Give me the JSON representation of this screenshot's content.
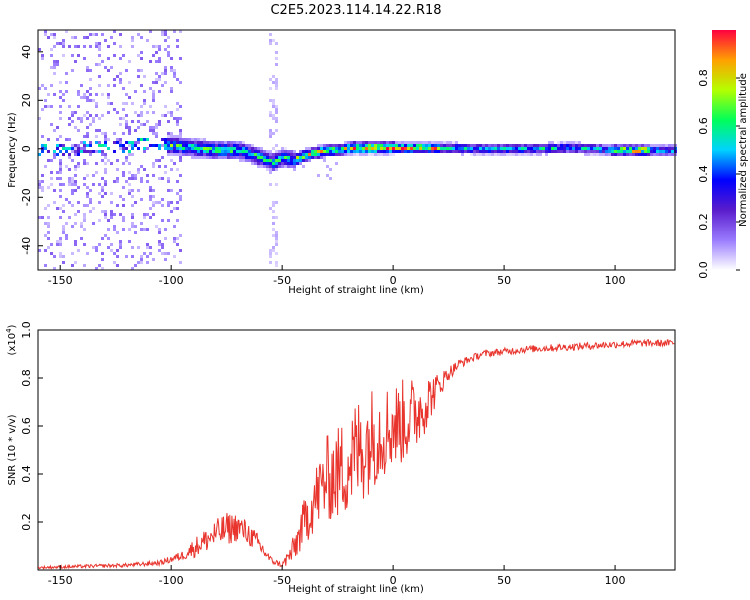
{
  "figure": {
    "title": "C2E5.2023.114.14.22.R18"
  },
  "chart_data": [
    {
      "type": "heatmap",
      "title": "C2E5.2023.114.14.22.R18",
      "xlabel": "Height of straight line (km)",
      "ylabel": "Frequency (Hz)",
      "xlim": [
        -160,
        127
      ],
      "ylim": [
        -50,
        49
      ],
      "xticks": [
        "-150",
        "-100",
        "-50",
        "0",
        "50",
        "100"
      ],
      "yticks": [
        "40",
        "20",
        "0",
        "-20",
        "-40"
      ],
      "xtick_values": [
        -150,
        -100,
        -50,
        0,
        50,
        100
      ],
      "ytick_values": [
        40,
        20,
        0,
        -20,
        -40
      ],
      "colorbar": {
        "label": "Normalized spectral amplitude",
        "range": [
          0,
          1
        ],
        "ticks": [
          "0.0",
          "0.2",
          "0.4",
          "0.6",
          "0.8"
        ],
        "tick_values": [
          0.0,
          0.2,
          0.4,
          0.6,
          0.8
        ],
        "colormap": [
          "#ffffff",
          "#9a7cff",
          "#5a1ccc",
          "#0000ff",
          "#00d2ff",
          "#00ff5a",
          "#b4ff00",
          "#ffa000",
          "#ff0040"
        ]
      },
      "ridge": {
        "description_free_values": true,
        "x": [
          -160,
          -135,
          -115,
          -100,
          -90,
          -80,
          -70,
          -60,
          -55,
          -50,
          -45,
          -40,
          -35,
          -30,
          -25,
          -20,
          -10,
          0,
          10,
          20,
          40,
          60,
          80,
          100,
          110,
          127
        ],
        "frequency_hz": [
          0,
          1,
          2,
          2,
          1,
          0,
          0,
          -3,
          -5,
          -3,
          -4,
          -2,
          -1,
          0,
          0,
          1,
          1,
          1,
          1,
          1,
          0.5,
          0.5,
          1,
          0,
          0,
          0
        ]
      },
      "grid": false
    },
    {
      "type": "line",
      "xlabel": "Height of straight line (km)",
      "ylabel": "SNR (10 * v/v)",
      "y_multiplier_label": "(x10",
      "y_multiplier_exp": "4",
      "y_multiplier_close": ")",
      "xlim": [
        -160,
        127
      ],
      "ylim": [
        0,
        1.0
      ],
      "xticks": [
        "-150",
        "-100",
        "-50",
        "0",
        "50",
        "100"
      ],
      "yticks": [
        "1.0",
        "0.8",
        "0.6",
        "0.4",
        "0.2"
      ],
      "xtick_values": [
        -150,
        -100,
        -50,
        0,
        50,
        100
      ],
      "ytick_values": [
        1.0,
        0.8,
        0.6,
        0.4,
        0.2
      ],
      "color": "#e8342c",
      "grid": false,
      "series": [
        {
          "x": [
            -160,
            -140,
            -120,
            -105,
            -95,
            -90,
            -85,
            -80,
            -75,
            -70,
            -65,
            -60,
            -55,
            -50,
            -45,
            -40,
            -35,
            -30,
            -25,
            -20,
            -15,
            -10,
            -5,
            0,
            5,
            10,
            15,
            20,
            25,
            30,
            35,
            40,
            50,
            60,
            70,
            80,
            90,
            100,
            110,
            120,
            127
          ],
          "values": [
            0.01,
            0.015,
            0.02,
            0.03,
            0.06,
            0.09,
            0.12,
            0.15,
            0.17,
            0.18,
            0.15,
            0.1,
            0.04,
            0.02,
            0.08,
            0.2,
            0.3,
            0.38,
            0.4,
            0.45,
            0.5,
            0.55,
            0.58,
            0.6,
            0.62,
            0.65,
            0.7,
            0.76,
            0.82,
            0.86,
            0.88,
            0.9,
            0.91,
            0.92,
            0.925,
            0.93,
            0.935,
            0.94,
            0.945,
            0.945,
            0.945
          ]
        }
      ],
      "noise_amplitude": [
        0.005,
        0.007,
        0.008,
        0.01,
        0.02,
        0.04,
        0.05,
        0.06,
        0.07,
        0.06,
        0.05,
        0.04,
        0.015,
        0.01,
        0.06,
        0.1,
        0.14,
        0.18,
        0.2,
        0.22,
        0.24,
        0.22,
        0.2,
        0.18,
        0.18,
        0.16,
        0.12,
        0.06,
        0.03,
        0.02,
        0.015,
        0.015,
        0.015,
        0.015,
        0.015,
        0.015,
        0.015,
        0.015,
        0.015,
        0.015,
        0.015
      ]
    }
  ]
}
